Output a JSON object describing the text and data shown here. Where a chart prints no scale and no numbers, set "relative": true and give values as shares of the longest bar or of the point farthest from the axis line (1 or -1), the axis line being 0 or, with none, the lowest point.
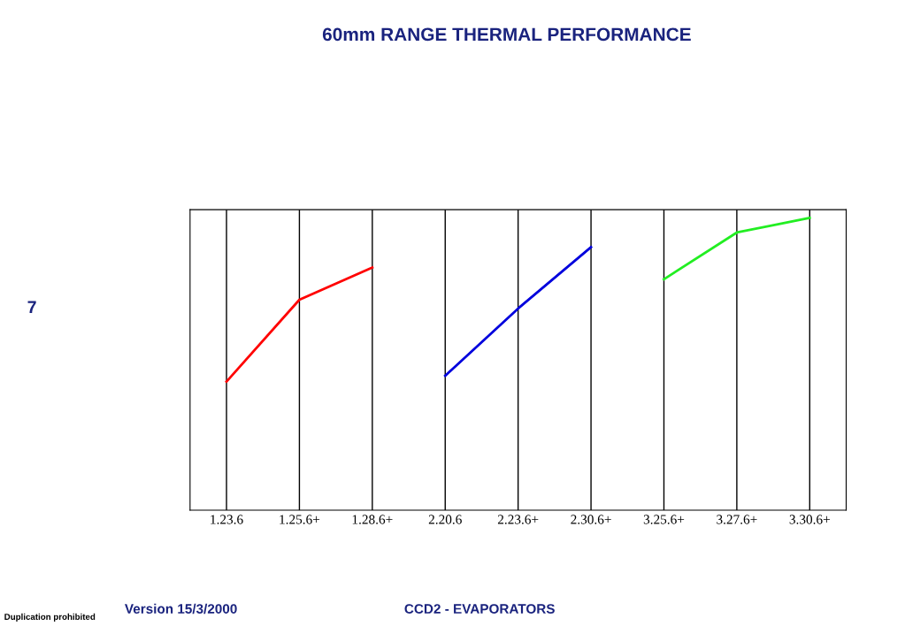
{
  "chart_data": {
    "type": "line",
    "title": "60mm RANGE THERMAL PERFORMANCE",
    "relative": true,
    "grid": true,
    "marker": "none",
    "line_style": "solid",
    "categories": [
      "1.23.6",
      "1.25.6+",
      "1.28.6+",
      "2.20.6",
      "2.23.6+",
      "2.30.6+",
      "3.25.6+",
      "3.27.6+",
      "3.30.6+"
    ],
    "series": [
      {
        "color": "#ff0000",
        "values": [
          0.44,
          0.72,
          0.83,
          null,
          null,
          null,
          null,
          null,
          null
        ]
      },
      {
        "color": "#0000dd",
        "values": [
          null,
          null,
          null,
          0.46,
          0.69,
          0.9,
          null,
          null,
          null
        ]
      },
      {
        "color": "#22ee22",
        "values": [
          null,
          null,
          null,
          null,
          null,
          null,
          0.79,
          0.95,
          1.0
        ]
      }
    ],
    "annotations": [
      "7",
      "Version 15/3/2000",
      "CCD2 - EVAPORATORS",
      "Duplication prohibited"
    ]
  }
}
